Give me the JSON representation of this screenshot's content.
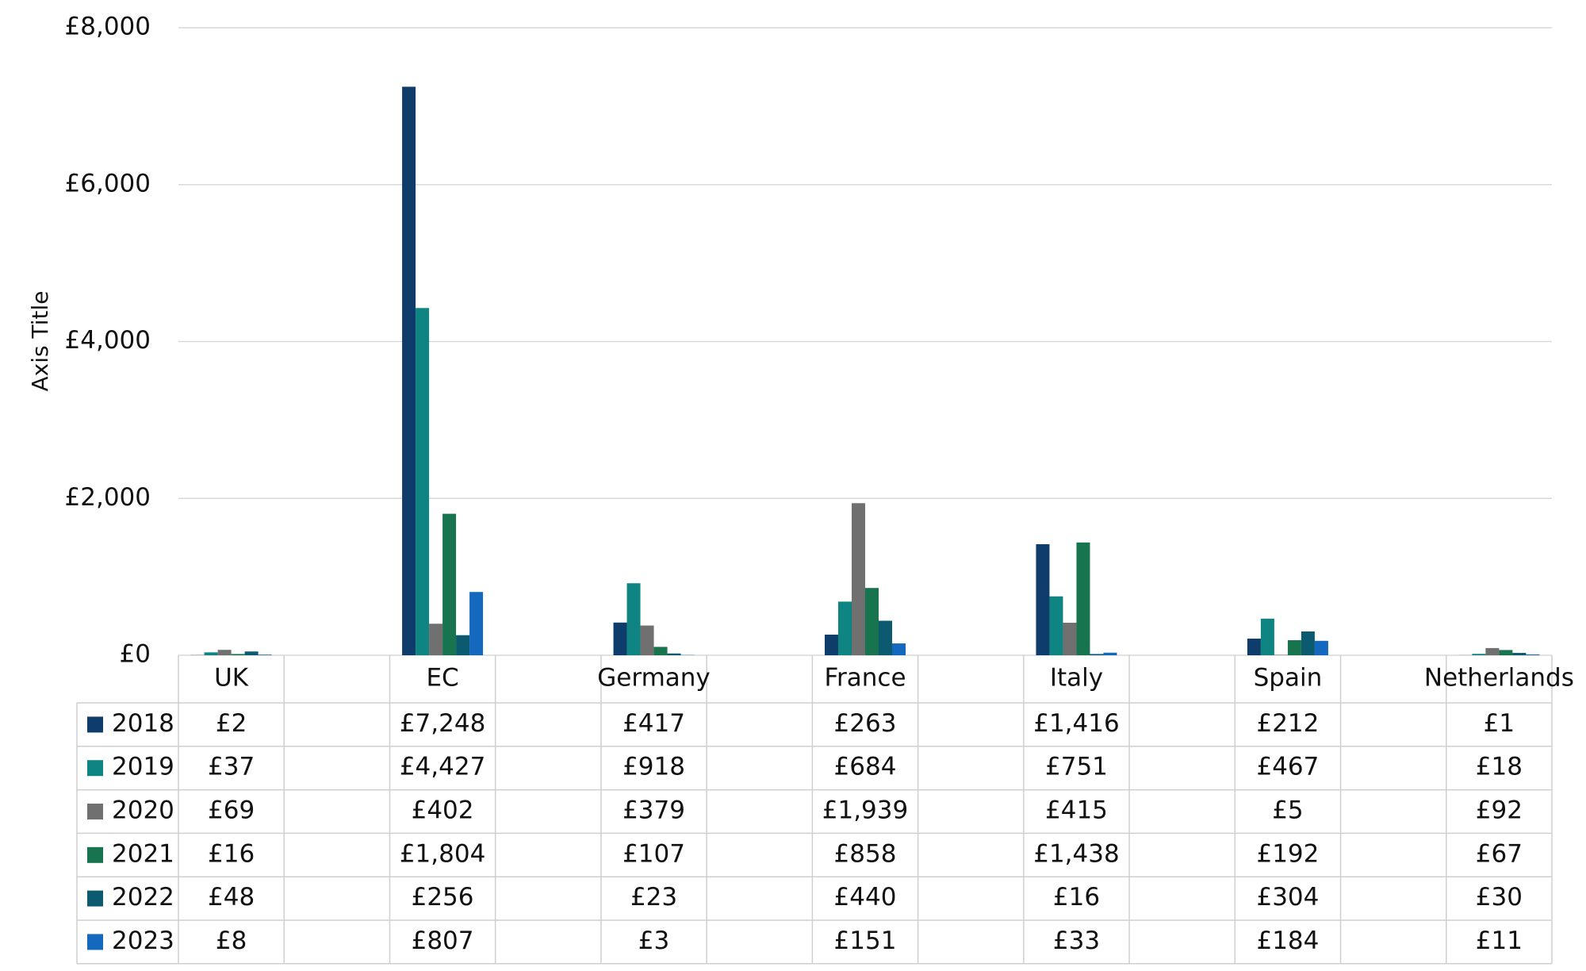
{
  "chart_data": {
    "type": "bar",
    "y_label": "Axis Title",
    "categories": [
      "UK",
      "EC",
      "Germany",
      "France",
      "Italy",
      "Spain",
      "Netherlands"
    ],
    "series": [
      {
        "name": "2018",
        "color": "#0e3d6b",
        "values": [
          2,
          7248,
          417,
          263,
          1416,
          212,
          1
        ],
        "value_labels": [
          "£2",
          "£7,248",
          "£417",
          "£263",
          "£1,416",
          "£212",
          "£1"
        ]
      },
      {
        "name": "2019",
        "color": "#0f8583",
        "values": [
          37,
          4427,
          918,
          684,
          751,
          467,
          18
        ],
        "value_labels": [
          "£37",
          "£4,427",
          "£918",
          "£684",
          "£751",
          "£467",
          "£18"
        ]
      },
      {
        "name": "2020",
        "color": "#707070",
        "values": [
          69,
          402,
          379,
          1939,
          415,
          5,
          92
        ],
        "value_labels": [
          "£69",
          "£402",
          "£379",
          "£1,939",
          "£415",
          "£5",
          "£92"
        ]
      },
      {
        "name": "2021",
        "color": "#18734f",
        "values": [
          16,
          1804,
          107,
          858,
          1438,
          192,
          67
        ],
        "value_labels": [
          "£16",
          "£1,804",
          "£107",
          "£858",
          "£1,438",
          "£192",
          "£67"
        ]
      },
      {
        "name": "2022",
        "color": "#0b5a70",
        "values": [
          48,
          256,
          23,
          440,
          16,
          304,
          30
        ],
        "value_labels": [
          "£48",
          "£256",
          "£23",
          "£440",
          "£16",
          "£304",
          "£30"
        ]
      },
      {
        "name": "2023",
        "color": "#1469bf",
        "values": [
          8,
          807,
          3,
          151,
          33,
          184,
          11
        ],
        "value_labels": [
          "£8",
          "£807",
          "£3",
          "£151",
          "£33",
          "£184",
          "£11"
        ]
      }
    ],
    "ylim": [
      0,
      8000
    ],
    "yticks": [
      {
        "value": 0,
        "label": "£0"
      },
      {
        "value": 2000,
        "label": "£2,000"
      },
      {
        "value": 4000,
        "label": "£4,000"
      },
      {
        "value": 6000,
        "label": "£6,000"
      },
      {
        "value": 8000,
        "label": "£8,000"
      }
    ],
    "grid": true
  }
}
